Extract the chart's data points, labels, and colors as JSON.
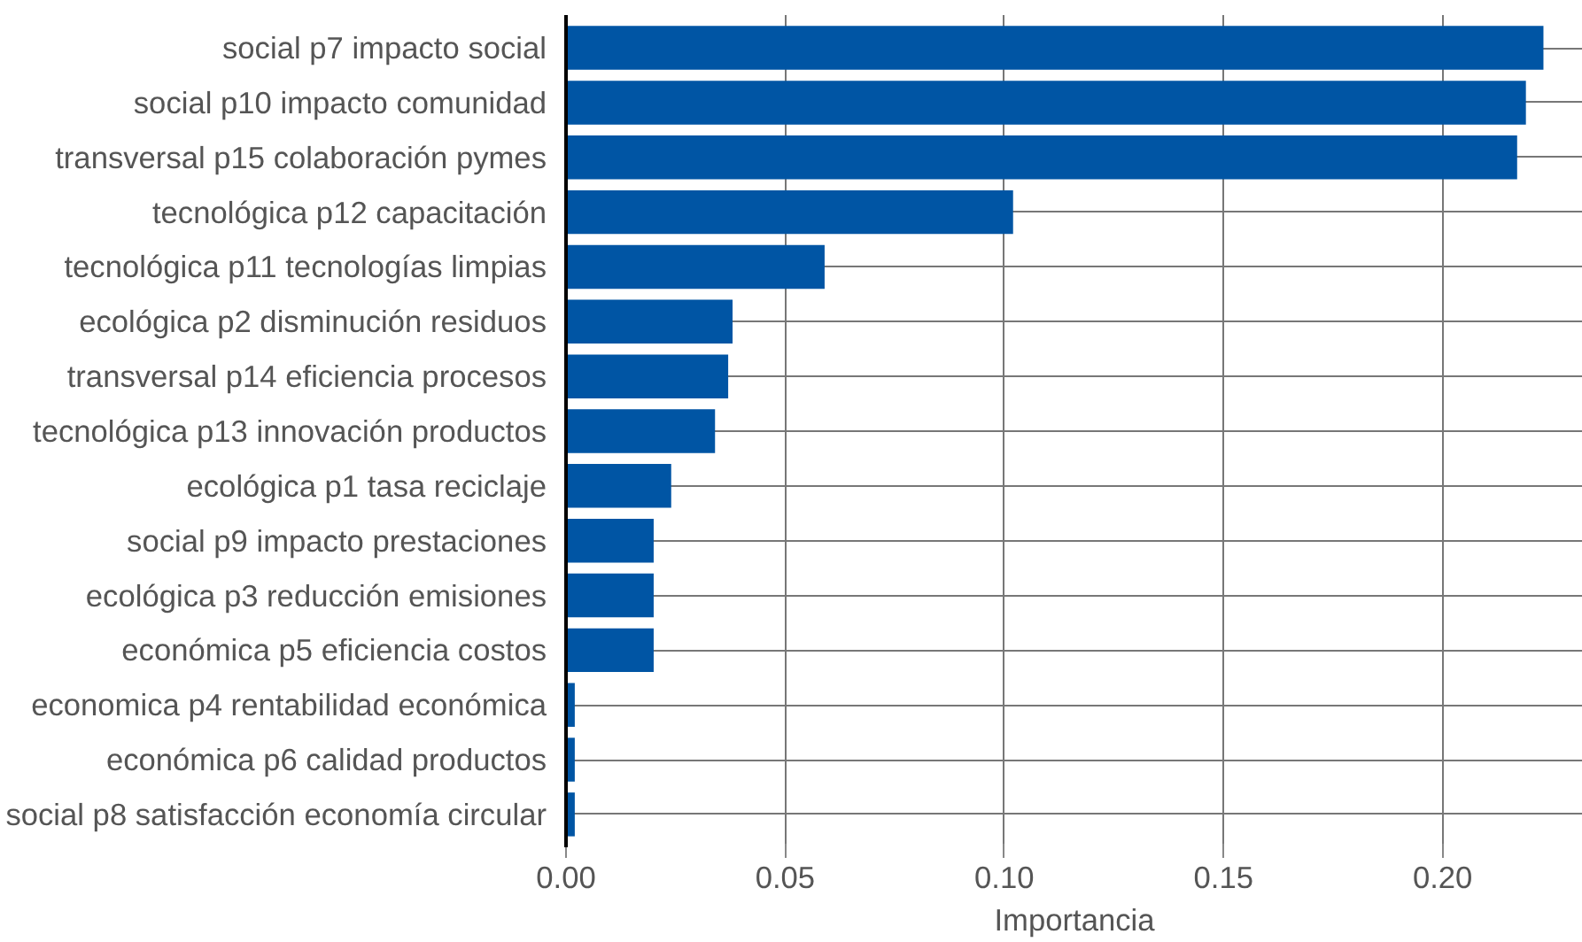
{
  "chart_data": {
    "type": "bar",
    "orientation": "horizontal",
    "xlabel": "Importancia",
    "categories": [
      "social p7 impacto social",
      "social p10 impacto comunidad",
      "transversal p15 colaboración pymes",
      "tecnológica p12 capacitación",
      "tecnológica p11 tecnologías limpias",
      "ecológica p2 disminución residuos",
      "transversal p14 eficiencia procesos",
      "tecnológica p13 innovación productos",
      "ecológica p1 tasa reciclaje",
      "social p9 impacto prestaciones",
      "ecológica p3 reducción emisiones",
      "económica p5 eficiencia costos",
      "economica p4 rentabilidad económica",
      "económica p6 calidad productos",
      "social p8 satisfacción economía circular"
    ],
    "values": [
      0.223,
      0.219,
      0.217,
      0.102,
      0.059,
      0.038,
      0.037,
      0.034,
      0.024,
      0.02,
      0.02,
      0.02,
      0.002,
      0.002,
      0.002
    ],
    "color": "#0055a4",
    "xlim": [
      0,
      0.232
    ],
    "xticks": [
      {
        "value": 0,
        "label": "0.00"
      },
      {
        "value": 0.05,
        "label": "0.05"
      },
      {
        "value": 0.1,
        "label": "0.10"
      },
      {
        "value": 0.15,
        "label": "0.15"
      },
      {
        "value": 0.2,
        "label": "0.20"
      }
    ],
    "grid": true
  }
}
